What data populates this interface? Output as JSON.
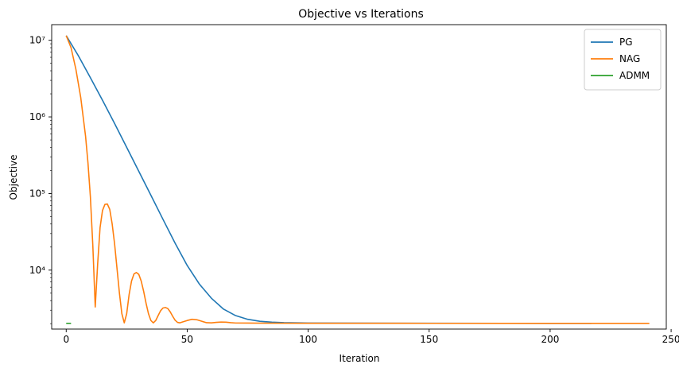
{
  "chart_data": {
    "type": "line",
    "title": "Objective vs Iterations",
    "xlabel": "Iteration",
    "ylabel": "Objective",
    "yscale": "log",
    "xlim": [
      -6,
      248
    ],
    "ylim": [
      1700,
      16000000
    ],
    "x_ticks": [
      0,
      50,
      100,
      150,
      200,
      250
    ],
    "y_ticks": [
      {
        "value": 10000,
        "label": "10⁴"
      },
      {
        "value": 100000,
        "label": "10⁵"
      },
      {
        "value": 1000000,
        "label": "10⁶"
      },
      {
        "value": 10000000,
        "label": "10⁷"
      }
    ],
    "grid": false,
    "legend_position": "top-right",
    "series": [
      {
        "name": "PG",
        "color": "#1f77b4",
        "points": [
          [
            0,
            11500000
          ],
          [
            5,
            6300000
          ],
          [
            10,
            3250000
          ],
          [
            15,
            1650000
          ],
          [
            20,
            820000
          ],
          [
            25,
            400000
          ],
          [
            30,
            195000
          ],
          [
            35,
            95000
          ],
          [
            40,
            46000
          ],
          [
            45,
            22500
          ],
          [
            50,
            11500
          ],
          [
            55,
            6600
          ],
          [
            60,
            4300
          ],
          [
            65,
            3100
          ],
          [
            70,
            2550
          ],
          [
            75,
            2280
          ],
          [
            80,
            2150
          ],
          [
            85,
            2090
          ],
          [
            90,
            2060
          ],
          [
            100,
            2040
          ],
          [
            120,
            2030
          ],
          [
            150,
            2025
          ],
          [
            200,
            2020
          ],
          [
            217,
            2020
          ]
        ]
      },
      {
        "name": "NAG",
        "color": "#ff7f0e",
        "points": [
          [
            0,
            11500000
          ],
          [
            2,
            8000000
          ],
          [
            4,
            4200000
          ],
          [
            6,
            1800000
          ],
          [
            8,
            560000
          ],
          [
            9,
            250000
          ],
          [
            10,
            90000
          ],
          [
            11,
            21000
          ],
          [
            12,
            3300
          ],
          [
            13,
            12000
          ],
          [
            14,
            36000
          ],
          [
            15,
            60000
          ],
          [
            16,
            72000
          ],
          [
            17,
            73000
          ],
          [
            18,
            62000
          ],
          [
            19,
            40000
          ],
          [
            20,
            22000
          ],
          [
            21,
            10500
          ],
          [
            22,
            5000
          ],
          [
            23,
            2700
          ],
          [
            24,
            2050
          ],
          [
            25,
            2700
          ],
          [
            26,
            4800
          ],
          [
            27,
            7200
          ],
          [
            28,
            8900
          ],
          [
            29,
            9300
          ],
          [
            30,
            8800
          ],
          [
            31,
            7200
          ],
          [
            32,
            5300
          ],
          [
            33,
            3700
          ],
          [
            34,
            2700
          ],
          [
            35,
            2200
          ],
          [
            36,
            2050
          ],
          [
            37,
            2200
          ],
          [
            38,
            2550
          ],
          [
            39,
            2950
          ],
          [
            40,
            3200
          ],
          [
            41,
            3250
          ],
          [
            42,
            3150
          ],
          [
            43,
            2850
          ],
          [
            44,
            2500
          ],
          [
            45,
            2220
          ],
          [
            46,
            2080
          ],
          [
            47,
            2050
          ],
          [
            48,
            2100
          ],
          [
            50,
            2200
          ],
          [
            52,
            2280
          ],
          [
            54,
            2250
          ],
          [
            56,
            2150
          ],
          [
            58,
            2060
          ],
          [
            60,
            2050
          ],
          [
            62,
            2080
          ],
          [
            64,
            2100
          ],
          [
            66,
            2090
          ],
          [
            68,
            2060
          ],
          [
            70,
            2040
          ],
          [
            75,
            2035
          ],
          [
            80,
            2030
          ],
          [
            100,
            2025
          ],
          [
            150,
            2022
          ],
          [
            200,
            2020
          ],
          [
            241,
            2020
          ]
        ]
      },
      {
        "name": "ADMM",
        "color": "#2ca02c",
        "points": [
          [
            0,
            2020
          ],
          [
            2,
            2020
          ]
        ]
      }
    ]
  }
}
